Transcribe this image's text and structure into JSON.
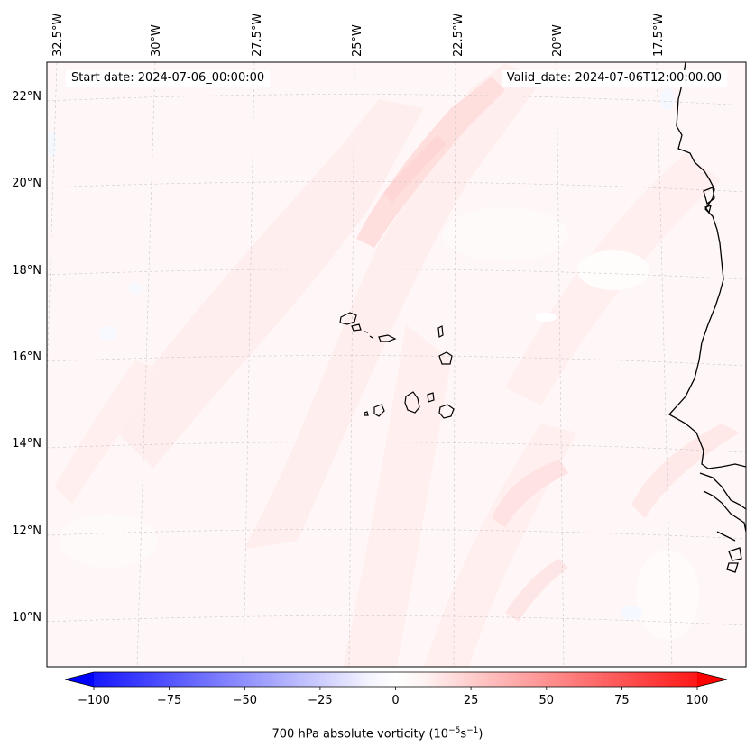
{
  "header": {
    "start_date": "Start date: 2024-07-06_00:00:00",
    "valid_date": "Valid_date: 2024-07-06T12:00:00.00"
  },
  "map": {
    "lon_labels": [
      "32.5°W",
      "30°W",
      "27.5°W",
      "25°W",
      "22.5°W",
      "20°W",
      "17.5°W"
    ],
    "lat_labels": [
      "22°N",
      "20°N",
      "18°N",
      "16°N",
      "14°N",
      "12°N",
      "10°N"
    ]
  },
  "colorbar": {
    "ticks": [
      "−100",
      "−75",
      "−50",
      "−25",
      "0",
      "25",
      "50",
      "75",
      "100"
    ],
    "label": "700 hPa absolute vorticity (10",
    "label_exp": "−5",
    "label_unit": "s",
    "label_exp2": "−1",
    "label_close": ")",
    "min_color": "#0000ff",
    "zero_color": "#ffffff",
    "max_color": "#ff0000"
  }
}
